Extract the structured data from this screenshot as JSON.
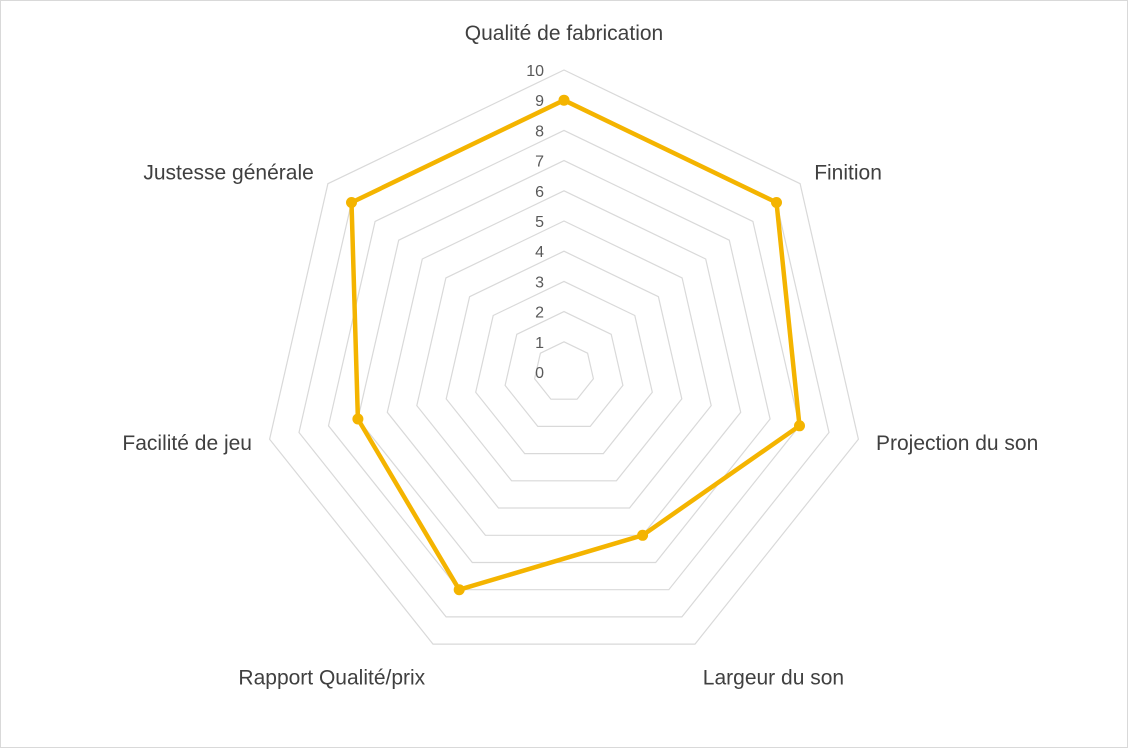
{
  "chart_data": {
    "type": "radar",
    "title": "",
    "categories": [
      "Qualité de fabrication",
      "Finition",
      "Projection du son",
      "Largeur du son",
      "Rapport Qualité/prix",
      "Facilité de jeu",
      "Justesse générale"
    ],
    "series": [
      {
        "values": [
          9,
          9,
          8,
          6,
          8,
          7,
          9
        ]
      }
    ],
    "ticks": [
      "0",
      "1",
      "2",
      "3",
      "4",
      "5",
      "6",
      "7",
      "8",
      "9",
      "10"
    ],
    "rmin": 0,
    "rmax": 10,
    "grid": true,
    "legend": "none",
    "colors": {
      "series": "#f4b400",
      "grid": "#d9d9d9",
      "text": "#404040"
    }
  }
}
